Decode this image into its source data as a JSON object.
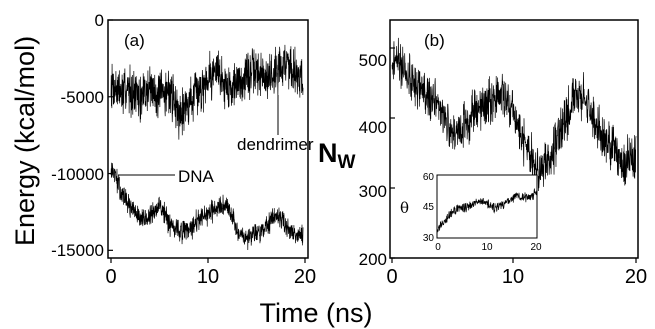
{
  "figure": {
    "xlabel": "Time (ns)"
  },
  "chart_data": [
    {
      "panel": "a",
      "type": "line",
      "tag": "(a)",
      "ylabel": "Energy (kcal/mol)",
      "xlim": [
        0,
        20
      ],
      "ylim": [
        -15500,
        0
      ],
      "xticks": [
        "0",
        "10",
        "20"
      ],
      "yticks": [
        "0",
        "-5000",
        "-10000",
        "-15000"
      ],
      "series": [
        {
          "name": "dendrimer",
          "x": [
            0,
            1,
            2,
            3,
            4,
            5,
            6,
            7,
            8,
            9,
            10,
            11,
            12,
            13,
            14,
            15,
            16,
            17,
            18,
            19,
            19.8
          ],
          "values": [
            -4000,
            -4800,
            -4400,
            -5200,
            -4300,
            -5000,
            -4500,
            -6000,
            -5400,
            -4700,
            -3600,
            -3300,
            -4400,
            -4100,
            -3600,
            -3400,
            -3800,
            -3300,
            -2700,
            -3300,
            -3900
          ]
        },
        {
          "name": "DNA",
          "x": [
            0,
            0.5,
            1,
            2,
            3,
            4,
            5,
            6,
            7,
            8,
            9,
            10,
            11,
            12,
            13,
            14,
            15,
            16,
            17,
            18,
            19,
            19.8
          ],
          "values": [
            -9800,
            -10200,
            -11200,
            -12200,
            -13000,
            -12900,
            -12000,
            -13200,
            -13700,
            -13800,
            -13000,
            -12800,
            -12000,
            -12200,
            -13600,
            -14200,
            -13800,
            -13600,
            -12800,
            -13300,
            -13900,
            -14200
          ]
        }
      ],
      "annotations": [
        "dendrimer",
        "DNA"
      ]
    },
    {
      "panel": "b",
      "type": "line",
      "tag": "(b)",
      "ylabel": "N",
      "ylabel_sub": "W",
      "xlim": [
        0,
        20
      ],
      "ylim": [
        200,
        540
      ],
      "xticks": [
        "0",
        "10",
        "20"
      ],
      "yticks": [
        "200",
        "300",
        "400",
        "500"
      ],
      "series": [
        {
          "x": [
            0,
            0.5,
            1,
            2,
            3,
            4,
            5,
            6,
            7,
            8,
            9,
            10,
            10.5,
            11,
            12,
            13,
            14,
            15,
            16,
            17,
            18,
            19,
            20
          ],
          "values": [
            485,
            480,
            470,
            445,
            430,
            410,
            375,
            395,
            410,
            425,
            435,
            410,
            380,
            355,
            320,
            345,
            385,
            435,
            420,
            380,
            360,
            330,
            355
          ]
        }
      ],
      "inset": {
        "type": "line",
        "ylabel": "θ",
        "xlim": [
          0,
          20
        ],
        "ylim": [
          30,
          60
        ],
        "xticks": [
          "0",
          "10",
          "20"
        ],
        "yticks": [
          "30",
          "45",
          "60"
        ],
        "series": [
          {
            "x": [
              0,
              1,
              2,
              4,
              6,
              8,
              10,
              12,
              14,
              16,
              18,
              20
            ],
            "values": [
              33,
              37,
              40,
              44,
              45,
              48,
              46,
              44,
              47,
              50,
              49,
              52
            ]
          }
        ]
      }
    }
  ]
}
